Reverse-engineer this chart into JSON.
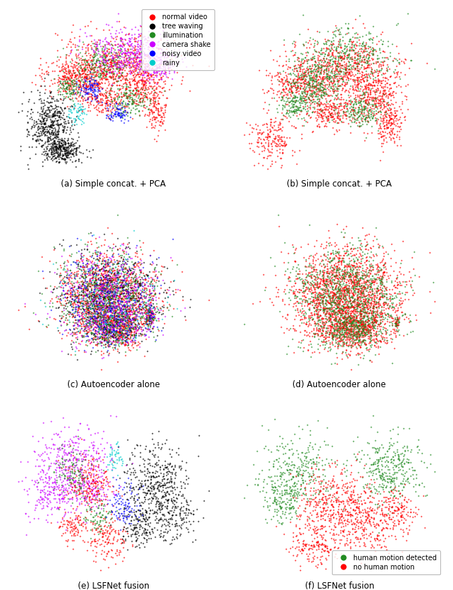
{
  "subplot_titles": [
    "(a) Simple concat. + PCA",
    "(b) Simple concat. + PCA",
    "(c) Autoencoder alone",
    "(d) Autoencoder alone",
    "(e) LSFNet fusion",
    "(f) LSFNet fusion"
  ],
  "legend1_labels": [
    "normal video",
    "tree waving",
    "illumination",
    "camera shake",
    "noisy video",
    "rainy"
  ],
  "legend1_colors": [
    "#ff0000",
    "#000000",
    "#228B22",
    "#cc00ff",
    "#0000ff",
    "#00cccc"
  ],
  "legend2_labels": [
    "human motion detected",
    "no human motion"
  ],
  "legend2_colors": [
    "#228B22",
    "#ff0000"
  ],
  "bg_color": "#ffffff",
  "point_size": 2.0,
  "alpha": 0.8,
  "seed": 42
}
